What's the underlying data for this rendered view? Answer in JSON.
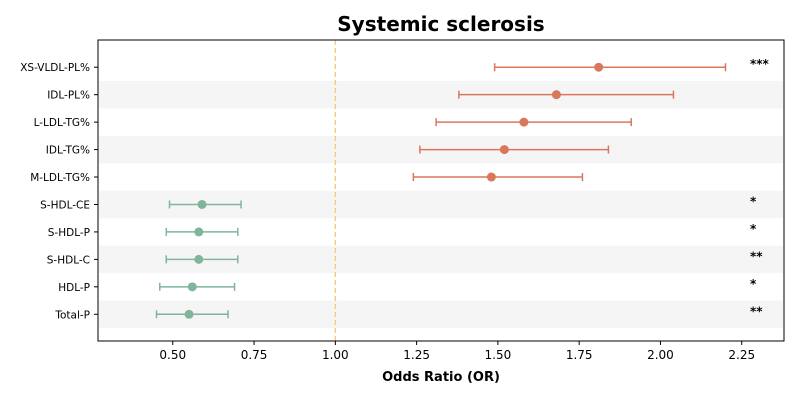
{
  "chart_data": {
    "type": "forest",
    "title": "Systemic sclerosis",
    "xlabel": "Odds Ratio (OR)",
    "xlim": [
      0.27,
      2.38
    ],
    "xticks": [
      "0.50",
      "0.75",
      "1.00",
      "1.25",
      "1.50",
      "1.75",
      "2.00",
      "2.25"
    ],
    "xtick_values": [
      0.5,
      0.75,
      1.0,
      1.25,
      1.5,
      1.75,
      2.0,
      2.25
    ],
    "reference_line": 1.0,
    "colors": {
      "risk": "#d9775c",
      "protective": "#80b59b",
      "reference": "#f5c97f",
      "stripe": "#f5f5f5"
    },
    "rows": [
      {
        "label": "XS-VLDL-PL%",
        "or": 1.81,
        "lower": 1.49,
        "upper": 2.2,
        "sig": "***",
        "group": "risk"
      },
      {
        "label": "IDL-PL%",
        "or": 1.68,
        "lower": 1.38,
        "upper": 2.04,
        "sig": "",
        "group": "risk"
      },
      {
        "label": "L-LDL-TG%",
        "or": 1.58,
        "lower": 1.31,
        "upper": 1.91,
        "sig": "",
        "group": "risk"
      },
      {
        "label": "IDL-TG%",
        "or": 1.52,
        "lower": 1.26,
        "upper": 1.84,
        "sig": "",
        "group": "risk"
      },
      {
        "label": "M-LDL-TG%",
        "or": 1.48,
        "lower": 1.24,
        "upper": 1.76,
        "sig": "",
        "group": "risk"
      },
      {
        "label": "S-HDL-CE",
        "or": 0.59,
        "lower": 0.49,
        "upper": 0.71,
        "sig": "*",
        "group": "protective"
      },
      {
        "label": "S-HDL-P",
        "or": 0.58,
        "lower": 0.48,
        "upper": 0.7,
        "sig": "*",
        "group": "protective"
      },
      {
        "label": "S-HDL-C",
        "or": 0.58,
        "lower": 0.48,
        "upper": 0.7,
        "sig": "**",
        "group": "protective"
      },
      {
        "label": "HDL-P",
        "or": 0.56,
        "lower": 0.46,
        "upper": 0.69,
        "sig": "*",
        "group": "protective"
      },
      {
        "label": "Total-P",
        "or": 0.55,
        "lower": 0.45,
        "upper": 0.67,
        "sig": "**",
        "group": "protective"
      }
    ]
  }
}
